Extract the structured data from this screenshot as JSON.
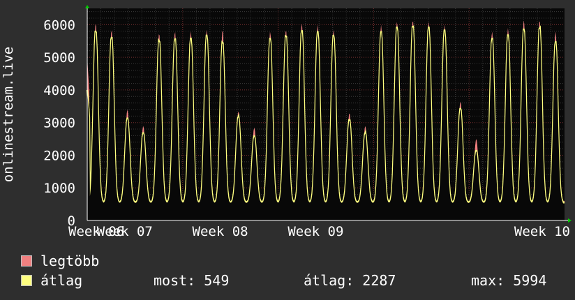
{
  "chart_data": {
    "type": "area",
    "ylabel": "onlinestream.live",
    "ylim": [
      0,
      6500
    ],
    "yticks": [
      "0",
      "1000",
      "2000",
      "3000",
      "4000",
      "5000",
      "6000"
    ],
    "xticks": [
      "Week 06",
      "Week 07",
      "Week 08",
      "Week 09",
      "Week 10"
    ],
    "grid": true,
    "days": 35,
    "series": [
      {
        "name": "legtöbb",
        "color": "#f08080",
        "daily_peaks": [
          6050,
          5850,
          3400,
          2900,
          5750,
          5800,
          5800,
          5850,
          5850,
          3350,
          2850,
          5800,
          5850,
          6050,
          6000,
          5850,
          3300,
          2900,
          6000,
          6100,
          6150,
          6100,
          6000,
          3650,
          2500,
          5800,
          5900,
          6150,
          6150,
          5800
        ],
        "first_value": 5000,
        "last_value": 600
      },
      {
        "name": "átlag",
        "color": "#ffff80",
        "daily_peaks": [
          5850,
          5650,
          3150,
          2700,
          5550,
          5600,
          5600,
          5700,
          5500,
          3200,
          2600,
          5600,
          5700,
          5850,
          5800,
          5700,
          3100,
          2700,
          5800,
          5950,
          6000,
          5950,
          5850,
          3450,
          2150,
          5600,
          5700,
          5900,
          5950,
          5500
        ],
        "first_value": 4000,
        "last_value": 549
      }
    ]
  },
  "legend": {
    "max_label": "legtöbb",
    "avg_label": "átlag",
    "max_color": "#f08080",
    "avg_color": "#ffff80"
  },
  "stats": {
    "now": "most: 549",
    "avg": "átlag: 2287",
    "max": "max: 5994"
  }
}
